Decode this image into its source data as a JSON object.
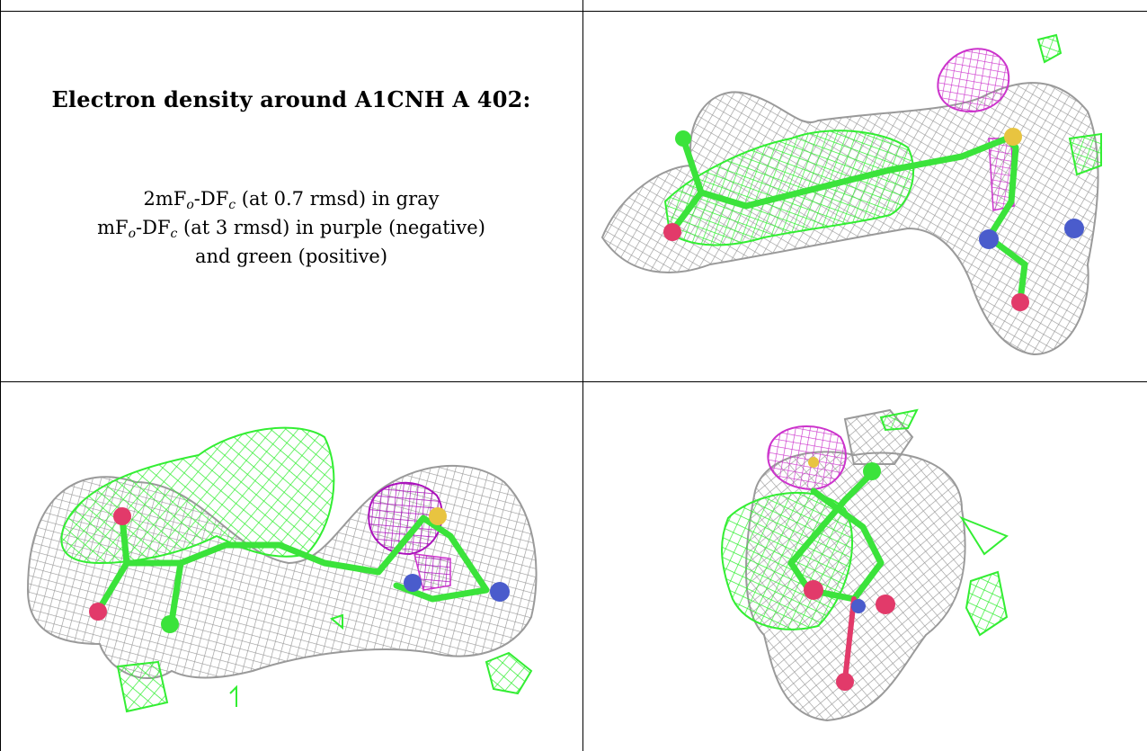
{
  "caption": {
    "title": "Electron density around A1CNH A 402:",
    "line1": {
      "prefix": "2mF",
      "sub1": "o",
      "mid": "-DF",
      "sub2": "c",
      "suffix": " (at 0.7 rmsd) in gray"
    },
    "line2": {
      "prefix": "mF",
      "sub1": "o",
      "mid": "-DF",
      "sub2": "c",
      "suffix": " (at 3 rmsd) in purple (negative)"
    },
    "line3": "and green (positive)"
  },
  "colors": {
    "mesh_gray": "#9a9a9a",
    "mesh_green": "#33ee33",
    "mesh_purple": "#cc33cc",
    "atom_carbon": "#3be33b",
    "atom_oxygen": "#e23a6a",
    "atom_nitrogen": "#4a5ccc",
    "atom_sulfur": "#e8c440"
  },
  "panels": [
    {
      "view": "top-right",
      "icon": "electron-density-view-1"
    },
    {
      "view": "bottom-left",
      "icon": "electron-density-view-2"
    },
    {
      "view": "bottom-right",
      "icon": "electron-density-view-3"
    }
  ]
}
